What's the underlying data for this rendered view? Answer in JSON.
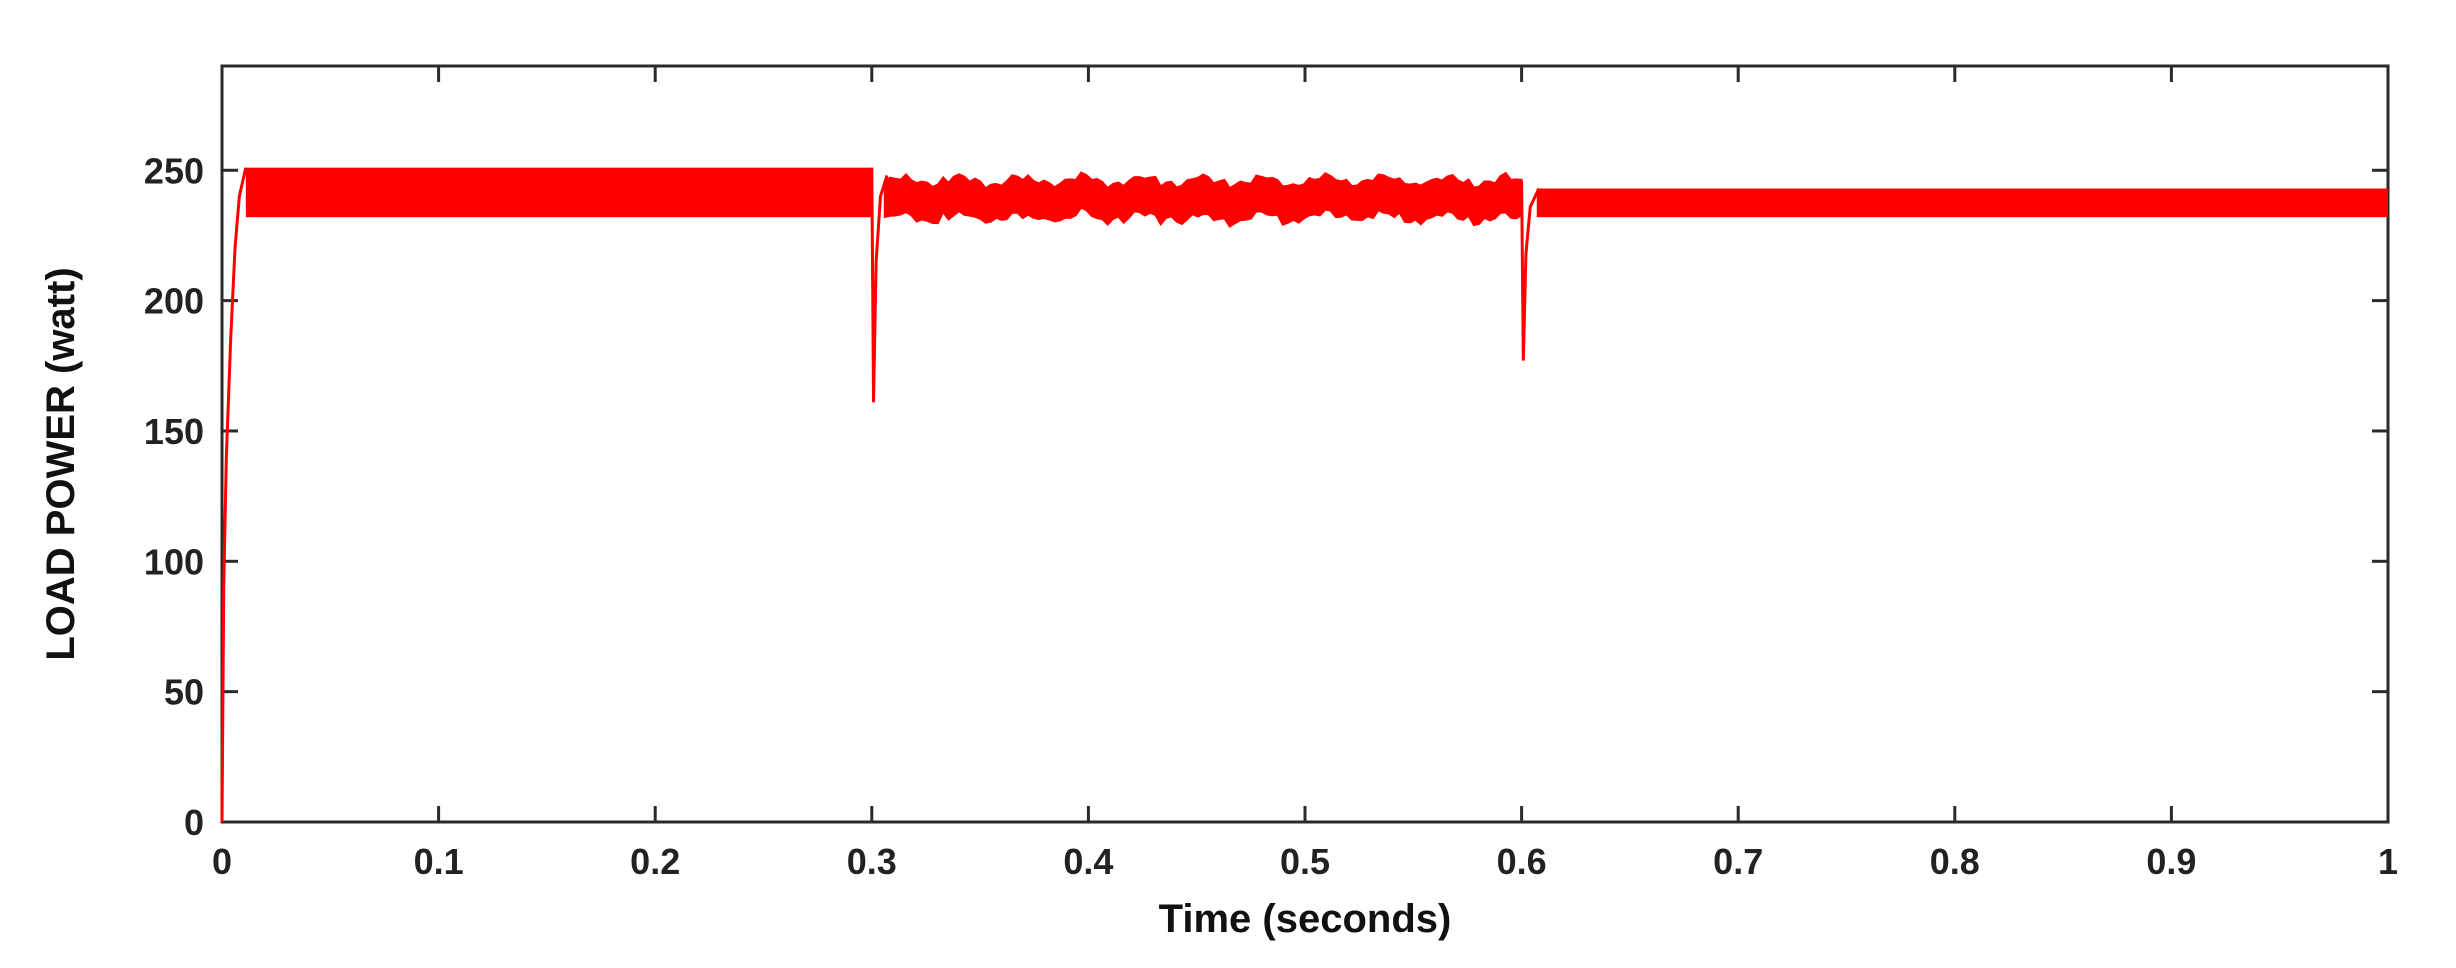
{
  "chart_data": {
    "type": "line",
    "xlabel": "Time (seconds)",
    "ylabel": "LOAD POWER (watt)",
    "xlim": [
      0,
      1
    ],
    "ylim": [
      0,
      290
    ],
    "x_ticks": [
      0,
      0.1,
      0.2,
      0.3,
      0.4,
      0.5,
      0.6,
      0.7,
      0.8,
      0.9,
      1
    ],
    "x_tick_labels": [
      "0",
      "0.1",
      "0.2",
      "0.3",
      "0.4",
      "0.5",
      "0.6",
      "0.7",
      "0.8",
      "0.9",
      "1"
    ],
    "y_ticks": [
      0,
      50,
      100,
      150,
      200,
      250
    ],
    "y_tick_labels": [
      "0",
      "50",
      "100",
      "150",
      "200",
      "250"
    ],
    "grid": false,
    "series_color": "#ff0000",
    "series": [
      {
        "segments": [
          {
            "x_start": 0.0,
            "x_end": 0.3,
            "min": 232,
            "max": 251
          },
          {
            "x_start": 0.3,
            "x_end": 0.6,
            "min": 229,
            "max": 248
          },
          {
            "x_start": 0.6,
            "x_end": 1.0,
            "min": 232,
            "max": 243
          }
        ],
        "transients": [
          {
            "x": 0.0,
            "y": 0,
            "note_point": [
              0.001,
              90
            ]
          },
          {
            "x": 0.3,
            "y": 161
          },
          {
            "x": 0.6,
            "y": 177
          }
        ]
      }
    ]
  }
}
